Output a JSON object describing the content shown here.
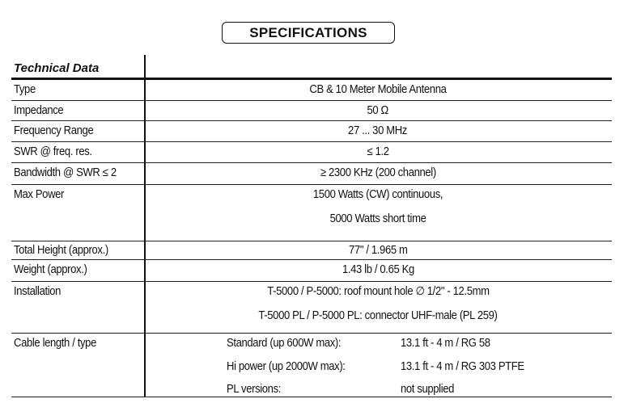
{
  "title": "SPECIFICATIONS",
  "table": {
    "header": "Technical Data",
    "rows": [
      {
        "label": "Type",
        "values": [
          "CB & 10 Meter Mobile Antenna"
        ]
      },
      {
        "label": "Impedance",
        "values": [
          "50 Ω"
        ]
      },
      {
        "label": "Frequency Range",
        "values": [
          "27 ... 30 MHz"
        ]
      },
      {
        "label": "SWR @ freq. res.",
        "values": [
          "≤ 1.2"
        ]
      },
      {
        "label": "Bandwidth @ SWR ≤ 2",
        "values": [
          "≥ 2300 KHz  (200 channel)"
        ]
      },
      {
        "label": "Max Power",
        "values": [
          "1500 Watts (CW) continuous,",
          "5000 Watts short time"
        ]
      },
      {
        "label": "Total Height (approx.)",
        "values": [
          "77\" / 1.965 m"
        ]
      },
      {
        "label": "Weight (approx.)",
        "values": [
          "1.43 lb / 0.65 Kg"
        ]
      },
      {
        "label": "Installation",
        "values": [
          "T-5000 / P-5000: roof mount hole ∅ 1/2\" - 12.5mm",
          "T-5000 PL / P-5000 PL: connector UHF-male (PL 259)"
        ]
      }
    ],
    "cable": {
      "label": "Cable length / type",
      "items": [
        {
          "name": "Standard (up 600W max):",
          "value": "13.1 ft - 4 m / RG 58"
        },
        {
          "name": "Hi power (up 2000W max):",
          "value": "13.1 ft - 4 m / RG 303 PTFE"
        },
        {
          "name": "PL versions:",
          "value": "not supplied"
        }
      ]
    }
  }
}
